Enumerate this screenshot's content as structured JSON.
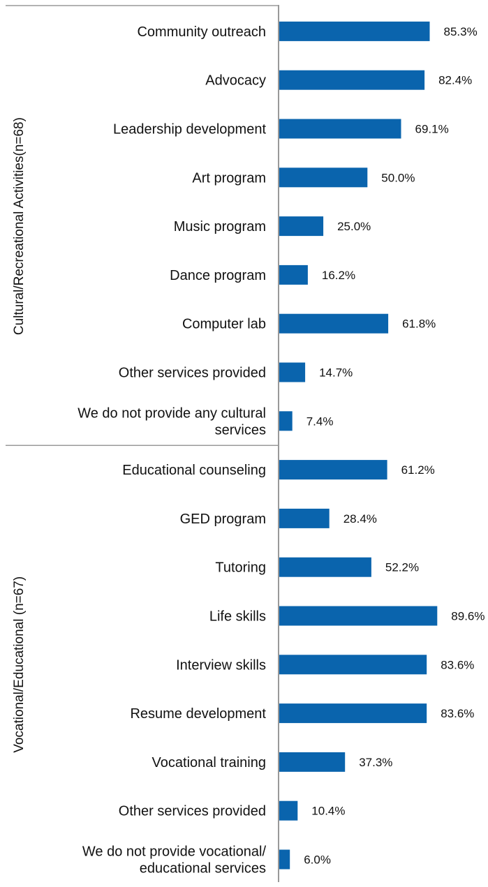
{
  "colors": {
    "bar": "#0a64ad",
    "axis": "#999999",
    "text": "#111111"
  },
  "chart_data": {
    "type": "bar",
    "orientation": "horizontal",
    "value_suffix": "%",
    "xlim": [
      0,
      100
    ],
    "grid": false,
    "groups": [
      {
        "name": "Cultural/Recreational Activities(n=68)",
        "items": [
          {
            "label": [
              "Community outreach"
            ],
            "value": 85.3,
            "value_label": "85.3%"
          },
          {
            "label": [
              "Advocacy"
            ],
            "value": 82.4,
            "value_label": "82.4%"
          },
          {
            "label": [
              "Leadership development"
            ],
            "value": 69.1,
            "value_label": "69.1%"
          },
          {
            "label": [
              "Art program"
            ],
            "value": 50.0,
            "value_label": "50.0%"
          },
          {
            "label": [
              "Music program"
            ],
            "value": 25.0,
            "value_label": "25.0%"
          },
          {
            "label": [
              "Dance program"
            ],
            "value": 16.2,
            "value_label": "16.2%"
          },
          {
            "label": [
              "Computer lab"
            ],
            "value": 61.8,
            "value_label": "61.8%"
          },
          {
            "label": [
              "Other services provided"
            ],
            "value": 14.7,
            "value_label": "14.7%"
          },
          {
            "label": [
              "We do not provide any cultural",
              "services"
            ],
            "value": 7.4,
            "value_label": "7.4%"
          }
        ]
      },
      {
        "name": "Vocational/Educational (n=67)",
        "items": [
          {
            "label": [
              "Educational counseling"
            ],
            "value": 61.2,
            "value_label": "61.2%"
          },
          {
            "label": [
              "GED program"
            ],
            "value": 28.4,
            "value_label": "28.4%"
          },
          {
            "label": [
              "Tutoring"
            ],
            "value": 52.2,
            "value_label": "52.2%"
          },
          {
            "label": [
              "Life skills"
            ],
            "value": 89.6,
            "value_label": "89.6%"
          },
          {
            "label": [
              "Interview skills"
            ],
            "value": 83.6,
            "value_label": "83.6%"
          },
          {
            "label": [
              "Resume development"
            ],
            "value": 83.6,
            "value_label": "83.6%"
          },
          {
            "label": [
              "Vocational training"
            ],
            "value": 37.3,
            "value_label": "37.3%"
          },
          {
            "label": [
              "Other services provided"
            ],
            "value": 10.4,
            "value_label": "10.4%"
          },
          {
            "label": [
              "We do not provide vocational/",
              "educational services"
            ],
            "value": 6.0,
            "value_label": "6.0%"
          }
        ]
      }
    ]
  }
}
